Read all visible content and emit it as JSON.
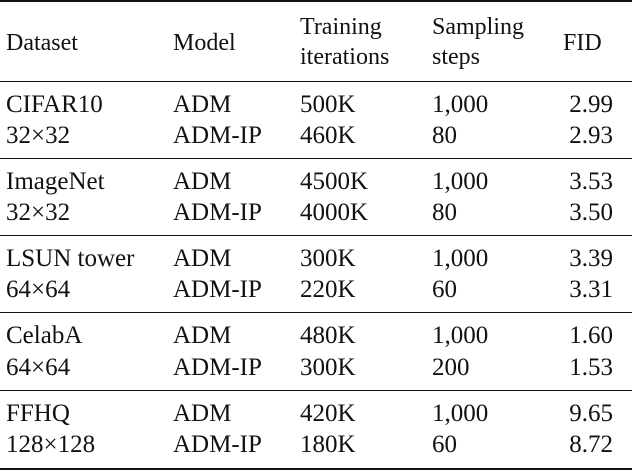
{
  "table": {
    "headers": {
      "dataset": "Dataset",
      "model": "Model",
      "training_line1": "Training",
      "training_line2": "iterations",
      "sampling_line1": "Sampling",
      "sampling_line2": "steps",
      "fid": "FID"
    },
    "groups": [
      {
        "dataset_line1": "CIFAR10",
        "dataset_line2": "32×32",
        "rows": [
          {
            "model": "ADM",
            "iterations": "500K",
            "steps": "1,000",
            "fid": "2.99"
          },
          {
            "model": "ADM-IP",
            "iterations": "460K",
            "steps": "80",
            "fid": "2.93"
          }
        ]
      },
      {
        "dataset_line1": "ImageNet",
        "dataset_line2": "32×32",
        "rows": [
          {
            "model": "ADM",
            "iterations": "4500K",
            "steps": "1,000",
            "fid": "3.53"
          },
          {
            "model": "ADM-IP",
            "iterations": "4000K",
            "steps": "80",
            "fid": "3.50"
          }
        ]
      },
      {
        "dataset_line1": "LSUN tower",
        "dataset_line2": "64×64",
        "rows": [
          {
            "model": "ADM",
            "iterations": "300K",
            "steps": "1,000",
            "fid": "3.39"
          },
          {
            "model": "ADM-IP",
            "iterations": "220K",
            "steps": "60",
            "fid": "3.31"
          }
        ]
      },
      {
        "dataset_line1": "CelabA",
        "dataset_line2": "64×64",
        "rows": [
          {
            "model": "ADM",
            "iterations": "480K",
            "steps": "1,000",
            "fid": "1.60"
          },
          {
            "model": "ADM-IP",
            "iterations": "300K",
            "steps": "200",
            "fid": "1.53"
          }
        ]
      },
      {
        "dataset_line1": "FFHQ",
        "dataset_line2": "128×128",
        "rows": [
          {
            "model": "ADM",
            "iterations": "420K",
            "steps": "1,000",
            "fid": "9.65"
          },
          {
            "model": "ADM-IP",
            "iterations": "180K",
            "steps": "60",
            "fid": "8.72"
          }
        ]
      }
    ]
  }
}
